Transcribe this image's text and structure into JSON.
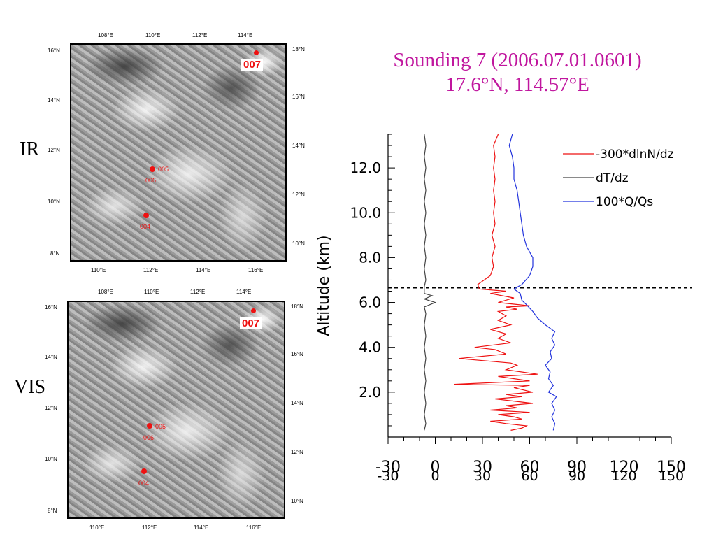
{
  "title": {
    "line1": "Sounding 7 (2006.07.01.0601)",
    "line2": "17.6°N, 114.57°E"
  },
  "panels": {
    "ir_label": "IR",
    "vis_label": "VIS"
  },
  "map_axes": {
    "top_ticks": [
      "108°E",
      "110°E",
      "112°E",
      "114°E"
    ],
    "bottom_ticks": [
      "110°E",
      "112°E",
      "114°E",
      "116°E"
    ],
    "left_ticks": [
      "16°N",
      "14°N",
      "12°N",
      "10°N",
      "8°N"
    ],
    "right_ticks": [
      "18°N",
      "16°N",
      "14°N",
      "12°N",
      "10°N"
    ]
  },
  "soundings": {
    "s004": "004",
    "s005": "005",
    "s006": "006",
    "s007": "007"
  },
  "colors": {
    "title": "#c0169e",
    "refractivity": "#ee1111",
    "dtdz": "#444444",
    "rh": "#2233dd",
    "sounding_marker": "#ee1111"
  },
  "chart_data": {
    "type": "line",
    "ylabel": "Altitude (km)",
    "xlabel": "",
    "xlim": [
      -30,
      150
    ],
    "ylim": [
      0,
      13.5
    ],
    "x_ticks": [
      -30,
      0,
      30,
      60,
      90,
      120,
      150
    ],
    "x_tick_labels_row1": [
      "-30",
      "0",
      "30",
      "60",
      "90",
      "120",
      "150"
    ],
    "x_tick_labels_row2": [
      "-30",
      "0",
      "30",
      "60",
      "90",
      "120",
      "150"
    ],
    "y_ticks": [
      2.0,
      4.0,
      6.0,
      8.0,
      10.0,
      12.0
    ],
    "y_tick_labels": [
      "2.0",
      "4.0",
      "6.0",
      "8.0",
      "10.0",
      "12.0"
    ],
    "reference_line_altitude": 6.65,
    "legend_position": "top-right",
    "series": [
      {
        "name": "-300*dlnN/dz",
        "color": "#ee1111",
        "points": [
          [
            48,
            0.3
          ],
          [
            55,
            0.4
          ],
          [
            58,
            0.5
          ],
          [
            45,
            0.6
          ],
          [
            35,
            0.7
          ],
          [
            55,
            0.8
          ],
          [
            50,
            0.9
          ],
          [
            40,
            1.0
          ],
          [
            60,
            1.1
          ],
          [
            35,
            1.2
          ],
          [
            52,
            1.3
          ],
          [
            45,
            1.4
          ],
          [
            62,
            1.5
          ],
          [
            38,
            1.7
          ],
          [
            55,
            1.8
          ],
          [
            45,
            1.9
          ],
          [
            62,
            2.0
          ],
          [
            50,
            2.2
          ],
          [
            60,
            2.3
          ],
          [
            12,
            2.35
          ],
          [
            60,
            2.5
          ],
          [
            40,
            2.7
          ],
          [
            65,
            2.8
          ],
          [
            45,
            3.0
          ],
          [
            52,
            3.2
          ],
          [
            48,
            3.3
          ],
          [
            15,
            3.5
          ],
          [
            45,
            3.7
          ],
          [
            38,
            3.9
          ],
          [
            25,
            4.0
          ],
          [
            48,
            4.2
          ],
          [
            40,
            4.4
          ],
          [
            45,
            4.6
          ],
          [
            35,
            4.8
          ],
          [
            48,
            5.0
          ],
          [
            40,
            5.2
          ],
          [
            45,
            5.4
          ],
          [
            40,
            5.6
          ],
          [
            52,
            5.7
          ],
          [
            45,
            5.8
          ],
          [
            60,
            5.85
          ],
          [
            40,
            6.0
          ],
          [
            50,
            6.2
          ],
          [
            35,
            6.4
          ],
          [
            45,
            6.5
          ],
          [
            28,
            6.6
          ],
          [
            27,
            6.8
          ],
          [
            35,
            7.2
          ],
          [
            37,
            7.6
          ],
          [
            36,
            8.0
          ],
          [
            38,
            8.5
          ],
          [
            36,
            9.0
          ],
          [
            38,
            9.5
          ],
          [
            37,
            10.0
          ],
          [
            38,
            10.5
          ],
          [
            37,
            11.0
          ],
          [
            38,
            11.5
          ],
          [
            37,
            12.0
          ],
          [
            38,
            12.5
          ],
          [
            37,
            13.0
          ],
          [
            40,
            13.5
          ]
        ]
      },
      {
        "name": "dT/dz",
        "color": "#444444",
        "points": [
          [
            -7,
            0.3
          ],
          [
            -6,
            0.6
          ],
          [
            -7,
            1.0
          ],
          [
            -6,
            1.5
          ],
          [
            -7,
            2.0
          ],
          [
            -6,
            2.5
          ],
          [
            -7,
            3.0
          ],
          [
            -6,
            3.5
          ],
          [
            -7,
            4.0
          ],
          [
            -6,
            4.5
          ],
          [
            -7,
            5.0
          ],
          [
            -6,
            5.5
          ],
          [
            -7,
            5.8
          ],
          [
            0,
            6.0
          ],
          [
            -7,
            6.15
          ],
          [
            -2,
            6.3
          ],
          [
            -7,
            6.4
          ],
          [
            -7,
            6.7
          ],
          [
            -6,
            7.0
          ],
          [
            -7,
            7.5
          ],
          [
            -6,
            8.0
          ],
          [
            -7,
            8.5
          ],
          [
            -6,
            9.0
          ],
          [
            -7,
            9.5
          ],
          [
            -6,
            10.0
          ],
          [
            -7,
            10.5
          ],
          [
            -6,
            11.0
          ],
          [
            -7,
            11.5
          ],
          [
            -6,
            12.0
          ],
          [
            -7,
            12.5
          ],
          [
            -6,
            13.0
          ],
          [
            -7,
            13.5
          ]
        ]
      },
      {
        "name": "100*Q/Qs",
        "color": "#2233dd",
        "points": [
          [
            75,
            0.3
          ],
          [
            76,
            0.6
          ],
          [
            74,
            0.9
          ],
          [
            76,
            1.2
          ],
          [
            74,
            1.5
          ],
          [
            77,
            1.8
          ],
          [
            72,
            2.0
          ],
          [
            75,
            2.3
          ],
          [
            72,
            2.6
          ],
          [
            73,
            2.9
          ],
          [
            70,
            3.2
          ],
          [
            74,
            3.5
          ],
          [
            73,
            3.8
          ],
          [
            76,
            4.1
          ],
          [
            74,
            4.4
          ],
          [
            76,
            4.7
          ],
          [
            70,
            5.0
          ],
          [
            65,
            5.3
          ],
          [
            62,
            5.6
          ],
          [
            58,
            5.9
          ],
          [
            55,
            6.1
          ],
          [
            54,
            6.4
          ],
          [
            50,
            6.6
          ],
          [
            55,
            6.8
          ],
          [
            60,
            7.2
          ],
          [
            62,
            7.6
          ],
          [
            62,
            8.0
          ],
          [
            58,
            8.5
          ],
          [
            56,
            9.0
          ],
          [
            55,
            9.5
          ],
          [
            54,
            10.0
          ],
          [
            53,
            10.5
          ],
          [
            52,
            11.0
          ],
          [
            50,
            11.5
          ],
          [
            50,
            12.0
          ],
          [
            49,
            12.5
          ],
          [
            47,
            13.0
          ],
          [
            49,
            13.5
          ]
        ]
      }
    ]
  }
}
